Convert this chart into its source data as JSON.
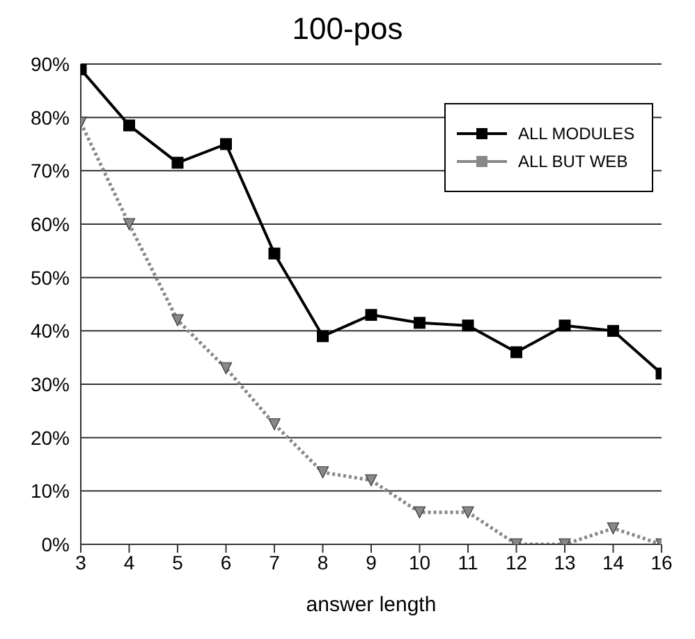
{
  "chart_data": {
    "type": "line",
    "title": "100-pos",
    "xlabel": "answer length",
    "categories": [
      "3",
      "4",
      "5",
      "6",
      "7",
      "8",
      "9",
      "10",
      "11",
      "12",
      "13",
      "14",
      "16"
    ],
    "series": [
      {
        "name": "ALL MODULES",
        "color": "#000000",
        "marker": "square",
        "line_style": "solid",
        "values": [
          89,
          78.5,
          71.5,
          75,
          54.5,
          39,
          43,
          41.5,
          41,
          36,
          41,
          40,
          32
        ]
      },
      {
        "name": "ALL BUT WEB",
        "color": "#888888",
        "marker": "triangle",
        "line_style": "dotted",
        "values": [
          79,
          60,
          42,
          33,
          22.5,
          13.5,
          12,
          6,
          6,
          0,
          0,
          3,
          0
        ]
      }
    ],
    "ylim": [
      0,
      90
    ],
    "yticks": [
      {
        "value": 0,
        "label": "0%"
      },
      {
        "value": 10,
        "label": "10%"
      },
      {
        "value": 20,
        "label": "20%"
      },
      {
        "value": 30,
        "label": "30%"
      },
      {
        "value": 40,
        "label": "40%"
      },
      {
        "value": 50,
        "label": "50%"
      },
      {
        "value": 60,
        "label": "60%"
      },
      {
        "value": 70,
        "label": "70%"
      },
      {
        "value": 80,
        "label": "80%"
      },
      {
        "value": 90,
        "label": "90%"
      }
    ],
    "grid": "y",
    "legend": "top right"
  }
}
